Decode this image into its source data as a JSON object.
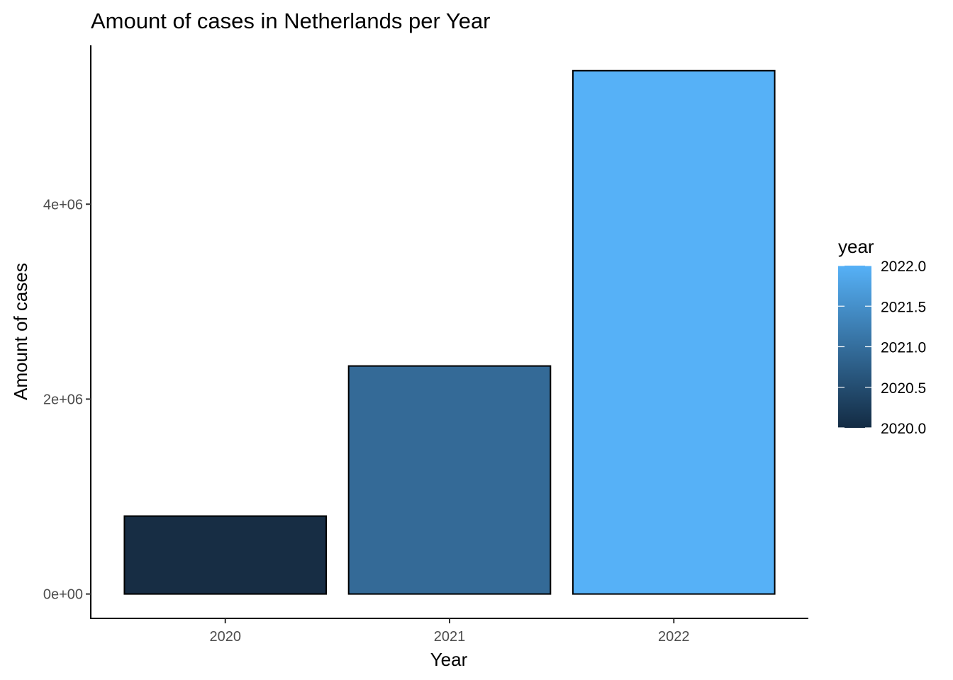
{
  "chart_data": {
    "type": "bar",
    "title": "Amount of cases in Netherlands per Year",
    "xlabel": "Year",
    "ylabel": "Amount of cases",
    "categories": [
      "2020",
      "2021",
      "2022"
    ],
    "values": [
      800000,
      2340000,
      5370000
    ],
    "ylim": [
      -250000,
      5630000
    ],
    "y_ticks": [
      0,
      2000000,
      4000000
    ],
    "y_tick_labels": [
      "0e+00",
      "2e+06",
      "4e+06"
    ],
    "bar_colors": [
      "#172d44",
      "#346a97",
      "#56b1f7"
    ],
    "bar_outline": "#000000",
    "grid": false,
    "legend": {
      "title": "year",
      "position": "right",
      "type": "colorbar",
      "range": [
        2020.0,
        2022.0
      ],
      "low_color": "#132b43",
      "high_color": "#56b1f7",
      "ticks": [
        2022.0,
        2021.5,
        2021.0,
        2020.5,
        2020.0
      ],
      "tick_labels": [
        "2022.0",
        "2021.5",
        "2021.0",
        "2020.5",
        "2020.0"
      ]
    }
  }
}
